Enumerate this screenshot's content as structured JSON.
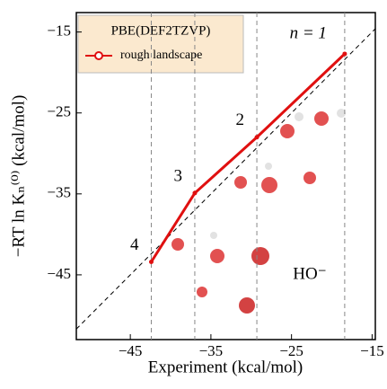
{
  "chart_data": {
    "type": "line",
    "x_label": "Experiment (kcal/mol)",
    "y_label": "−RT ln Kₙ⁽⁰⁾ (kcal/mol)",
    "legend_title": "PBE(DEF2TZVP)",
    "annotation": "HO⁻",
    "x": [
      -42.4,
      -37,
      -29.3,
      -18.4
    ],
    "point_labels": [
      "4",
      "3",
      "2",
      "n = 1"
    ],
    "series": [
      {
        "name": "rough landscape",
        "color": "#e01010",
        "values": [
          -43.4,
          -34.9,
          -28,
          -17.7
        ]
      }
    ],
    "xlim": [
      -51.7,
      -14.6
    ],
    "ylim": [
      -53,
      -12.6
    ],
    "xticks": [
      {
        "value": -45,
        "label": "−45"
      },
      {
        "value": -35,
        "label": "−35"
      },
      {
        "value": -25,
        "label": "−25"
      },
      {
        "value": -15,
        "label": "−15"
      }
    ],
    "yticks": [
      {
        "value": -45,
        "label": "−45"
      },
      {
        "value": -35,
        "label": "−35"
      },
      {
        "value": -25,
        "label": "−25"
      },
      {
        "value": -15,
        "label": "−15"
      }
    ],
    "diagonal": true,
    "vlines": true,
    "legend": "upper left"
  }
}
